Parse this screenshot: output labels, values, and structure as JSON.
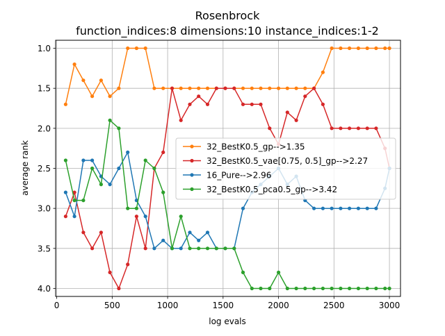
{
  "chart_data": {
    "type": "line",
    "title": "Rosenbrock",
    "subtitle": "function_indices:8 dimensions:10 instance_indices:1-2",
    "xlabel": "log evals",
    "ylabel": "average rank",
    "xlim": [
      -10,
      3100
    ],
    "ylim": [
      4.1,
      0.9
    ],
    "y_inverted": true,
    "grid": true,
    "legend_position": "center-right",
    "x_ticks": [
      0,
      500,
      1000,
      1500,
      2000,
      2500,
      3000
    ],
    "x_tick_labels": [
      "0",
      "500",
      "1000",
      "1500",
      "2000",
      "2500",
      "3000"
    ],
    "y_ticks": [
      1.0,
      1.5,
      2.0,
      2.5,
      3.0,
      3.5,
      4.0
    ],
    "y_tick_labels": [
      "1.0",
      "1.5",
      "2.0",
      "2.5",
      "3.0",
      "3.5",
      "4.0"
    ],
    "x": [
      80,
      160,
      240,
      320,
      400,
      480,
      560,
      640,
      720,
      800,
      880,
      960,
      1040,
      1120,
      1200,
      1280,
      1360,
      1440,
      1520,
      1600,
      1680,
      1760,
      1840,
      1920,
      2000,
      2080,
      2160,
      2240,
      2320,
      2400,
      2480,
      2560,
      2640,
      2720,
      2800,
      2880,
      2960,
      3000
    ],
    "series": [
      {
        "name": "32_BestK0.5_gp-->1.35",
        "color": "#ff7f0e",
        "values": [
          1.7,
          1.2,
          1.4,
          1.6,
          1.4,
          1.6,
          1.5,
          1.0,
          1.0,
          1.0,
          1.5,
          1.5,
          1.5,
          1.5,
          1.5,
          1.5,
          1.5,
          1.5,
          1.5,
          1.5,
          1.5,
          1.5,
          1.5,
          1.5,
          1.5,
          1.5,
          1.5,
          1.5,
          1.5,
          1.3,
          1.0,
          1.0,
          1.0,
          1.0,
          1.0,
          1.0,
          1.0,
          1.0
        ]
      },
      {
        "name": "32_BestK0.5_vae[0.75, 0.5]_gp-->2.27",
        "color": "#d62728",
        "values": [
          3.1,
          2.8,
          3.3,
          3.5,
          3.3,
          3.8,
          4.0,
          3.7,
          3.1,
          3.5,
          2.5,
          2.3,
          1.5,
          1.9,
          1.7,
          1.6,
          1.7,
          1.5,
          1.5,
          1.5,
          1.7,
          1.7,
          1.7,
          2.0,
          2.2,
          1.8,
          1.9,
          1.6,
          1.5,
          1.7,
          2.0,
          2.0,
          2.0,
          2.0,
          2.0,
          2.0,
          2.25,
          2.5
        ]
      },
      {
        "name": "16_Pure-->2.96",
        "color": "#1f77b4",
        "values": [
          2.8,
          3.1,
          2.4,
          2.4,
          2.6,
          2.7,
          2.5,
          2.3,
          2.9,
          3.1,
          3.5,
          3.4,
          3.5,
          3.5,
          3.3,
          3.4,
          3.3,
          3.5,
          3.5,
          3.5,
          3.0,
          2.8,
          2.7,
          2.6,
          2.5,
          2.7,
          2.6,
          2.9,
          3.0,
          3.0,
          3.0,
          3.0,
          3.0,
          3.0,
          3.0,
          3.0,
          2.75,
          2.5
        ]
      },
      {
        "name": "32_BestK0.5_pca0.5_gp-->3.42",
        "color": "#2ca02c",
        "values": [
          2.4,
          2.9,
          2.9,
          2.5,
          2.7,
          1.9,
          2.0,
          3.0,
          3.0,
          2.4,
          2.5,
          2.8,
          3.5,
          3.1,
          3.5,
          3.5,
          3.5,
          3.5,
          3.5,
          3.5,
          3.8,
          4.0,
          4.0,
          4.0,
          3.8,
          4.0,
          4.0,
          4.0,
          4.0,
          4.0,
          4.0,
          4.0,
          4.0,
          4.0,
          4.0,
          4.0,
          4.0,
          4.0
        ]
      }
    ]
  }
}
